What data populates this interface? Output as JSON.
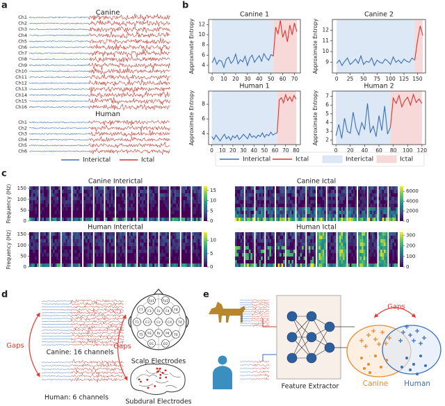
{
  "panel_labels": [
    "a",
    "b",
    "c",
    "d",
    "e"
  ],
  "eeg": {
    "groups": [
      {
        "title": "Canine",
        "channels": [
          "Ch1",
          "Ch2",
          "Ch3",
          "Ch4",
          "Ch5",
          "Ch6",
          "Ch7",
          "Ch8",
          "Ch9",
          "Ch10",
          "Ch11",
          "Ch12",
          "Ch13",
          "Ch14",
          "Ch15",
          "Ch16"
        ]
      },
      {
        "title": "Human",
        "channels": [
          "Ch1",
          "Ch2",
          "Ch3",
          "Ch4",
          "Ch5",
          "Ch6"
        ]
      }
    ],
    "legend": [
      {
        "name": "Interictal",
        "color": "#3b6fb6"
      },
      {
        "name": "Ictal",
        "color": "#c73a2e"
      }
    ]
  },
  "chart_data": [
    {
      "type": "line",
      "title": "Canine 1",
      "ylabel": "Approximate Entropy",
      "xlim": [
        -3,
        75
      ],
      "xticks": [
        0,
        10,
        20,
        30,
        40,
        50,
        60,
        70
      ],
      "ylim": [
        2.5,
        13
      ],
      "yticks": [
        4,
        6,
        8,
        10,
        12
      ],
      "x": [
        0,
        2,
        4,
        6,
        8,
        10,
        12,
        14,
        16,
        18,
        20,
        22,
        24,
        26,
        28,
        30,
        32,
        34,
        36,
        38,
        40,
        42,
        44,
        46,
        48,
        50,
        52,
        54,
        56,
        58,
        60,
        62,
        64,
        66,
        68,
        70,
        72
      ],
      "series": [
        {
          "name": "Interictal",
          "color": "#3b6fb6",
          "values": [
            4.5,
            5.5,
            4.2,
            5.0,
            4.8,
            3.6,
            5.2,
            5.6,
            4.4,
            4.9,
            6.2,
            4.3,
            5.1,
            4.7,
            5.8,
            4.0,
            5.4,
            6.0,
            4.6,
            5.3,
            5.9,
            4.8,
            6.3,
            5.5,
            5.0,
            6.1,
            5.8,
            null,
            null,
            null,
            null,
            null,
            null,
            null,
            null,
            null,
            null
          ]
        },
        {
          "name": "Ictal",
          "color": "#d9352b",
          "values": [
            null,
            null,
            null,
            null,
            null,
            null,
            null,
            null,
            null,
            null,
            null,
            null,
            null,
            null,
            null,
            null,
            null,
            null,
            null,
            null,
            null,
            null,
            null,
            null,
            null,
            null,
            5.8,
            11.5,
            10.2,
            12.8,
            9.5,
            10.8,
            8.6,
            11.9,
            10.0,
            12.3,
            10.6
          ]
        }
      ],
      "spans": [
        {
          "name": "Interictal",
          "color": "#dce8f5",
          "range": [
            0,
            52
          ]
        },
        {
          "name": "Ictal",
          "color": "#f8d9d9",
          "range": [
            52,
            72
          ]
        }
      ]
    },
    {
      "type": "line",
      "title": "Canine 2",
      "ylabel": "Approximate Entropy",
      "xlim": [
        -8,
        165
      ],
      "xticks": [
        0,
        25,
        50,
        75,
        100,
        125,
        150
      ],
      "ylim": [
        8,
        13
      ],
      "yticks": [
        9,
        10,
        11,
        12
      ],
      "x": [
        0,
        5,
        10,
        15,
        20,
        25,
        30,
        35,
        40,
        45,
        50,
        55,
        60,
        65,
        70,
        75,
        80,
        85,
        90,
        95,
        100,
        105,
        110,
        115,
        120,
        125,
        130,
        135,
        140,
        145,
        150,
        155,
        160
      ],
      "series": [
        {
          "name": "Interictal",
          "color": "#3b6fb6",
          "values": [
            8.9,
            9.2,
            8.7,
            9.1,
            9.4,
            8.8,
            9.0,
            9.3,
            8.9,
            9.6,
            8.8,
            9.1,
            9.0,
            9.4,
            8.7,
            9.2,
            9.0,
            8.9,
            9.3,
            9.1,
            8.8,
            9.5,
            9.0,
            9.2,
            8.9,
            9.3,
            9.1,
            9.0,
            9.4,
            9.2,
            null,
            null,
            null
          ]
        },
        {
          "name": "Ictal",
          "color": "#d9352b",
          "values": [
            null,
            null,
            null,
            null,
            null,
            null,
            null,
            null,
            null,
            null,
            null,
            null,
            null,
            null,
            null,
            null,
            null,
            null,
            null,
            null,
            null,
            null,
            null,
            null,
            null,
            null,
            null,
            null,
            null,
            9.2,
            11.0,
            12.4,
            11.5
          ]
        }
      ],
      "spans": [
        {
          "name": "Interictal",
          "color": "#dce8f5",
          "range": [
            0,
            145
          ]
        },
        {
          "name": "Ictal",
          "color": "#f8d9d9",
          "range": [
            145,
            160
          ]
        }
      ]
    },
    {
      "type": "line",
      "title": "Human 1",
      "ylabel": "Approximate Entropy",
      "xlim": [
        -3,
        84
      ],
      "xticks": [
        0,
        10,
        20,
        30,
        40,
        50,
        60,
        70,
        80
      ],
      "ylim": [
        2.5,
        9.8
      ],
      "yticks": [
        4,
        6,
        8
      ],
      "x": [
        0,
        2,
        4,
        6,
        8,
        10,
        12,
        14,
        16,
        18,
        20,
        22,
        24,
        26,
        28,
        30,
        32,
        34,
        36,
        38,
        40,
        42,
        44,
        46,
        48,
        50,
        52,
        54,
        56,
        58,
        60,
        62,
        64,
        66,
        68,
        70,
        72,
        74,
        76,
        78,
        80
      ],
      "series": [
        {
          "name": "Interictal",
          "color": "#3b6fb6",
          "values": [
            3.6,
            3.2,
            3.8,
            3.4,
            3.0,
            3.5,
            3.9,
            3.3,
            3.6,
            3.1,
            3.7,
            3.4,
            3.8,
            3.2,
            3.5,
            3.9,
            3.6,
            3.3,
            4.0,
            3.5,
            3.7,
            3.4,
            3.8,
            3.6,
            4.1,
            3.5,
            3.9,
            3.7,
            4.2,
            3.8,
            4.0,
            4.1,
            null,
            null,
            null,
            null,
            null,
            null,
            null,
            null,
            null
          ]
        },
        {
          "name": "Ictal",
          "color": "#d9352b",
          "values": [
            null,
            null,
            null,
            null,
            null,
            null,
            null,
            null,
            null,
            null,
            null,
            null,
            null,
            null,
            null,
            null,
            null,
            null,
            null,
            null,
            null,
            null,
            null,
            null,
            null,
            null,
            null,
            null,
            null,
            null,
            null,
            4.1,
            8.6,
            8.9,
            8.2,
            9.3,
            8.5,
            9.0,
            8.4,
            9.2,
            8.7
          ]
        }
      ],
      "spans": [
        {
          "name": "Interictal",
          "color": "#dce8f5",
          "range": [
            0,
            62
          ]
        },
        {
          "name": "Ictal",
          "color": "#f8d9d9",
          "range": [
            62,
            80
          ]
        }
      ]
    },
    {
      "type": "line",
      "title": "Human 2",
      "ylabel": "Approximate Entropy",
      "xlim": [
        -5,
        125
      ],
      "xticks": [
        0,
        20,
        40,
        60,
        80,
        100,
        120
      ],
      "ylim": [
        1.5,
        7.6
      ],
      "yticks": [
        2,
        3,
        4,
        5,
        6,
        7
      ],
      "x": [
        0,
        4,
        8,
        12,
        16,
        20,
        24,
        28,
        32,
        36,
        40,
        44,
        48,
        52,
        56,
        60,
        64,
        68,
        72,
        76,
        80,
        84,
        88,
        92,
        96,
        100,
        104,
        108,
        112,
        116,
        120
      ],
      "series": [
        {
          "name": "Interictal",
          "color": "#3b6fb6",
          "values": [
            2.5,
            3.8,
            2.2,
            4.5,
            3.0,
            2.8,
            5.2,
            3.4,
            2.6,
            4.0,
            3.2,
            6.2,
            2.9,
            3.6,
            2.4,
            4.8,
            3.1,
            5.9,
            2.7,
            3.5,
            null,
            null,
            null,
            null,
            null,
            null,
            null,
            null,
            null,
            null,
            null
          ]
        },
        {
          "name": "Ictal",
          "color": "#d9352b",
          "values": [
            null,
            null,
            null,
            null,
            null,
            null,
            null,
            null,
            null,
            null,
            null,
            null,
            null,
            null,
            null,
            null,
            null,
            null,
            null,
            3.5,
            6.8,
            6.2,
            7.1,
            5.8,
            6.5,
            6.9,
            6.0,
            7.2,
            6.3,
            6.7,
            6.2
          ]
        }
      ],
      "spans": [
        {
          "name": "Interictal",
          "color": "#dce8f5",
          "range": [
            0,
            76
          ]
        },
        {
          "name": "Ictal",
          "color": "#f8d9d9",
          "range": [
            76,
            120
          ]
        }
      ]
    }
  ],
  "spectrograms": {
    "ylabel": "Frequency (Hz)",
    "ylim": [
      0,
      160
    ],
    "yticks": [
      0,
      50,
      100,
      150
    ],
    "panels": [
      {
        "title": "Canine Interictal",
        "clim": [
          0,
          17
        ],
        "cticks": [
          0,
          5,
          10,
          15
        ]
      },
      {
        "title": "Canine Ictal",
        "clim": [
          0,
          7000
        ],
        "cticks": [
          0,
          2000,
          4000,
          6000
        ]
      },
      {
        "title": "Human Interictal",
        "clim": [
          0,
          13
        ],
        "cticks": [
          0,
          5,
          10
        ]
      },
      {
        "title": "Human Ictal",
        "clim": [
          0,
          330
        ],
        "cticks": [
          0,
          100,
          200,
          300
        ]
      }
    ]
  },
  "domain_gaps": {
    "gaps": [
      "Gaps",
      "Gaps"
    ],
    "canine": "Canine: 16 channels",
    "human": "Human: 6 channels",
    "scalp": "Scalp Electrodes",
    "subdural": "Subdural Electrodes",
    "electrodes": [
      "Fp1",
      "Fp2",
      "F7",
      "F3",
      "Fz",
      "F4",
      "F8",
      "T3",
      "C3",
      "Cz",
      "C4",
      "T4",
      "T5",
      "P3",
      "Pz",
      "P4",
      "T6",
      "O1",
      "O2"
    ]
  },
  "model": {
    "gaps": "Gaps",
    "extractor": "Feature Extractor",
    "canine": "Canine",
    "human": "Human"
  }
}
